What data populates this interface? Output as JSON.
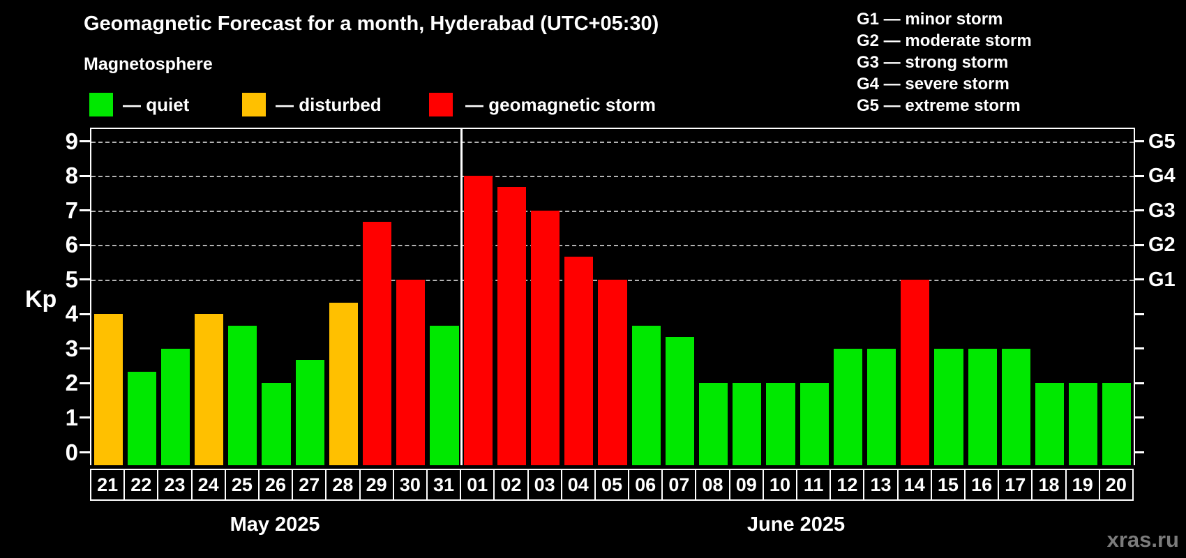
{
  "header": {
    "title": "Geomagnetic Forecast for a month, Hyderabad (UTC+05:30)",
    "subtitle": "Magnetosphere"
  },
  "legend": {
    "items": [
      {
        "key": "quiet",
        "label": "— quiet",
        "color": "#00e800"
      },
      {
        "key": "disturbed",
        "label": "— disturbed",
        "color": "#ffc000"
      },
      {
        "key": "storm",
        "label": "— geomagnetic storm",
        "color": "#ff0000"
      }
    ]
  },
  "storm_scale_legend": {
    "items": [
      "G1 — minor storm",
      "G2 — moderate storm",
      "G3 — strong storm",
      "G4 — severe storm",
      "G5 — extreme storm"
    ]
  },
  "watermark": "xras.ru",
  "chart_data": {
    "type": "bar",
    "title": "Geomagnetic Forecast for a month, Hyderabad (UTC+05:30)",
    "subtitle": "Magnetosphere",
    "ylabel": "Kp",
    "ylim": [
      0,
      9
    ],
    "y_ticks": [
      0,
      1,
      2,
      3,
      4,
      5,
      6,
      7,
      8,
      9
    ],
    "grid_levels": [
      5,
      6,
      7,
      8,
      9
    ],
    "grid_on": true,
    "legend_position": "top",
    "right_axis": [
      {
        "kp": 5,
        "label": "G1"
      },
      {
        "kp": 6,
        "label": "G2"
      },
      {
        "kp": 7,
        "label": "G3"
      },
      {
        "kp": 8,
        "label": "G4"
      },
      {
        "kp": 9,
        "label": "G5"
      }
    ],
    "status_colors": {
      "quiet": "#00e800",
      "disturbed": "#ffc000",
      "storm": "#ff0000"
    },
    "months": [
      {
        "label": "May 2025",
        "points": [
          {
            "day": "21",
            "kp": 4.0,
            "status": "disturbed"
          },
          {
            "day": "22",
            "kp": 2.33,
            "status": "quiet"
          },
          {
            "day": "23",
            "kp": 3.0,
            "status": "quiet"
          },
          {
            "day": "24",
            "kp": 4.0,
            "status": "disturbed"
          },
          {
            "day": "25",
            "kp": 3.67,
            "status": "quiet"
          },
          {
            "day": "26",
            "kp": 2.0,
            "status": "quiet"
          },
          {
            "day": "27",
            "kp": 2.67,
            "status": "quiet"
          },
          {
            "day": "28",
            "kp": 4.33,
            "status": "disturbed"
          },
          {
            "day": "29",
            "kp": 6.67,
            "status": "storm"
          },
          {
            "day": "30",
            "kp": 5.0,
            "status": "storm"
          },
          {
            "day": "31",
            "kp": 3.67,
            "status": "quiet"
          }
        ]
      },
      {
        "label": "June 2025",
        "points": [
          {
            "day": "01",
            "kp": 8.0,
            "status": "storm"
          },
          {
            "day": "02",
            "kp": 7.67,
            "status": "storm"
          },
          {
            "day": "03",
            "kp": 7.0,
            "status": "storm"
          },
          {
            "day": "04",
            "kp": 5.67,
            "status": "storm"
          },
          {
            "day": "05",
            "kp": 5.0,
            "status": "storm"
          },
          {
            "day": "06",
            "kp": 3.67,
            "status": "quiet"
          },
          {
            "day": "07",
            "kp": 3.33,
            "status": "quiet"
          },
          {
            "day": "08",
            "kp": 2.0,
            "status": "quiet"
          },
          {
            "day": "09",
            "kp": 2.0,
            "status": "quiet"
          },
          {
            "day": "10",
            "kp": 2.0,
            "status": "quiet"
          },
          {
            "day": "11",
            "kp": 2.0,
            "status": "quiet"
          },
          {
            "day": "12",
            "kp": 3.0,
            "status": "quiet"
          },
          {
            "day": "13",
            "kp": 3.0,
            "status": "quiet"
          },
          {
            "day": "14",
            "kp": 5.0,
            "status": "storm"
          },
          {
            "day": "15",
            "kp": 3.0,
            "status": "quiet"
          },
          {
            "day": "16",
            "kp": 3.0,
            "status": "quiet"
          },
          {
            "day": "17",
            "kp": 3.0,
            "status": "quiet"
          },
          {
            "day": "18",
            "kp": 2.0,
            "status": "quiet"
          },
          {
            "day": "19",
            "kp": 2.0,
            "status": "quiet"
          },
          {
            "day": "20",
            "kp": 2.0,
            "status": "quiet"
          }
        ]
      }
    ]
  }
}
